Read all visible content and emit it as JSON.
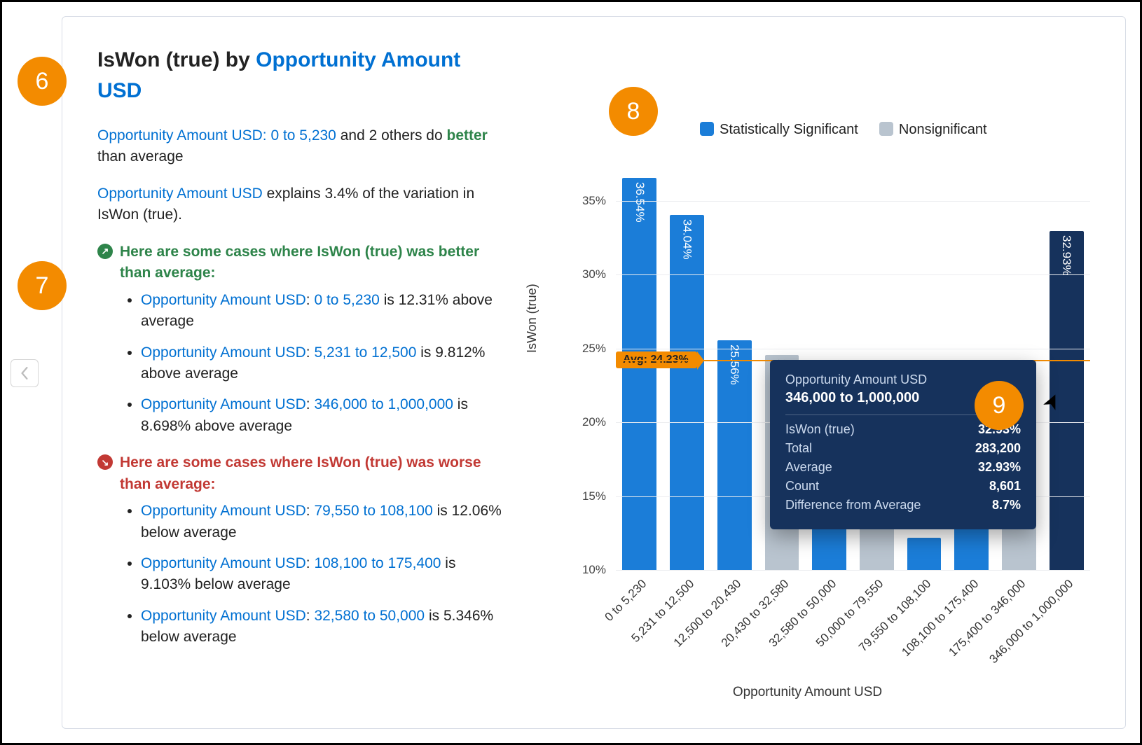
{
  "title_prefix": "IsWon (true) by ",
  "title_link": "Opportunity Amount USD",
  "summary1_link": "Opportunity Amount USD",
  "summary1_range": ": 0 to 5,230",
  "summary1_rest": " and 2 others do ",
  "summary1_better": "better",
  "summary1_tail": " than average",
  "summary2_link": "Opportunity Amount USD",
  "summary2_rest": " explains 3.4% of the variation in IsWon (true).",
  "better_heading": "Here are some cases where IsWon (true) was better than average:",
  "worse_heading": "Here are some cases where IsWon (true) was worse than average:",
  "better_cases": [
    {
      "range": "0 to 5,230",
      "pct": "12.31%",
      "dir": "above"
    },
    {
      "range": "5,231 to 12,500",
      "pct": "9.812%",
      "dir": "above"
    },
    {
      "range": "346,000 to 1,000,000",
      "pct": "8.698%",
      "dir": "above"
    }
  ],
  "worse_cases": [
    {
      "range": "79,550 to 108,100",
      "pct": "12.06%",
      "dir": "below"
    },
    {
      "range": "108,100 to 175,400",
      "pct": "9.103%",
      "dir": "below"
    },
    {
      "range": "32,580 to 50,000",
      "pct": "5.346%",
      "dir": "below"
    }
  ],
  "field_label": "Opportunity Amount USD",
  "legend": {
    "sig": "Statistically Significant",
    "nonsig": "Nonsignificant",
    "sig_color": "#1b7dd8",
    "nonsig_color": "#b9c4cf"
  },
  "chart": {
    "type": "bar",
    "y_axis_title": "IsWon (true)",
    "x_axis_title": "Opportunity Amount USD",
    "ymin": 10,
    "ymax": 37.5,
    "ytick_step": 5,
    "ytick_suffix": "%",
    "grid_color": "#ecedf0",
    "avg_value": 24.23,
    "avg_label": "Avg: 24.23%",
    "avg_color": "#f38b00",
    "bar_width_pct": 7.2,
    "categories": [
      "0 to 5,230",
      "5,231 to 12,500",
      "12,500 to 20,430",
      "20,430 to 32,580",
      "32,580 to 50,000",
      "50,000 to 79,550",
      "79,550 to 108,100",
      "108,100 to 175,400",
      "175,400 to 346,000",
      "346,000 to 1,000,000"
    ],
    "values": [
      36.54,
      34.04,
      25.56,
      24.56,
      18.89,
      21.31,
      12.17,
      15.13,
      23.8,
      32.93
    ],
    "show_value_label": [
      true,
      true,
      true,
      true,
      false,
      false,
      false,
      false,
      false,
      true
    ],
    "colors": [
      "#1b7dd8",
      "#1b7dd8",
      "#1b7dd8",
      "#b9c4cf",
      "#1b7dd8",
      "#b9c4cf",
      "#1b7dd8",
      "#1b7dd8",
      "#b9c4cf",
      "#16325c"
    ],
    "label_font_color": [
      "#ffffff",
      "#ffffff",
      "#ffffff",
      "#5e6b78",
      "",
      "",
      "",
      "",
      "",
      "#ffffff"
    ]
  },
  "tooltip": {
    "title": "Opportunity Amount USD",
    "subtitle": "346,000 to 1,000,000",
    "rows": [
      {
        "k": "IsWon (true)",
        "v": "32.93%"
      },
      {
        "k": "Total",
        "v": "283,200"
      },
      {
        "k": "Average",
        "v": "32.93%"
      },
      {
        "k": "Count",
        "v": "8,601"
      },
      {
        "k": "Difference from Average",
        "v": "8.7%"
      }
    ],
    "bg": "#16325c"
  },
  "callouts": {
    "6": "6",
    "7": "7",
    "8": "8",
    "9": "9"
  }
}
